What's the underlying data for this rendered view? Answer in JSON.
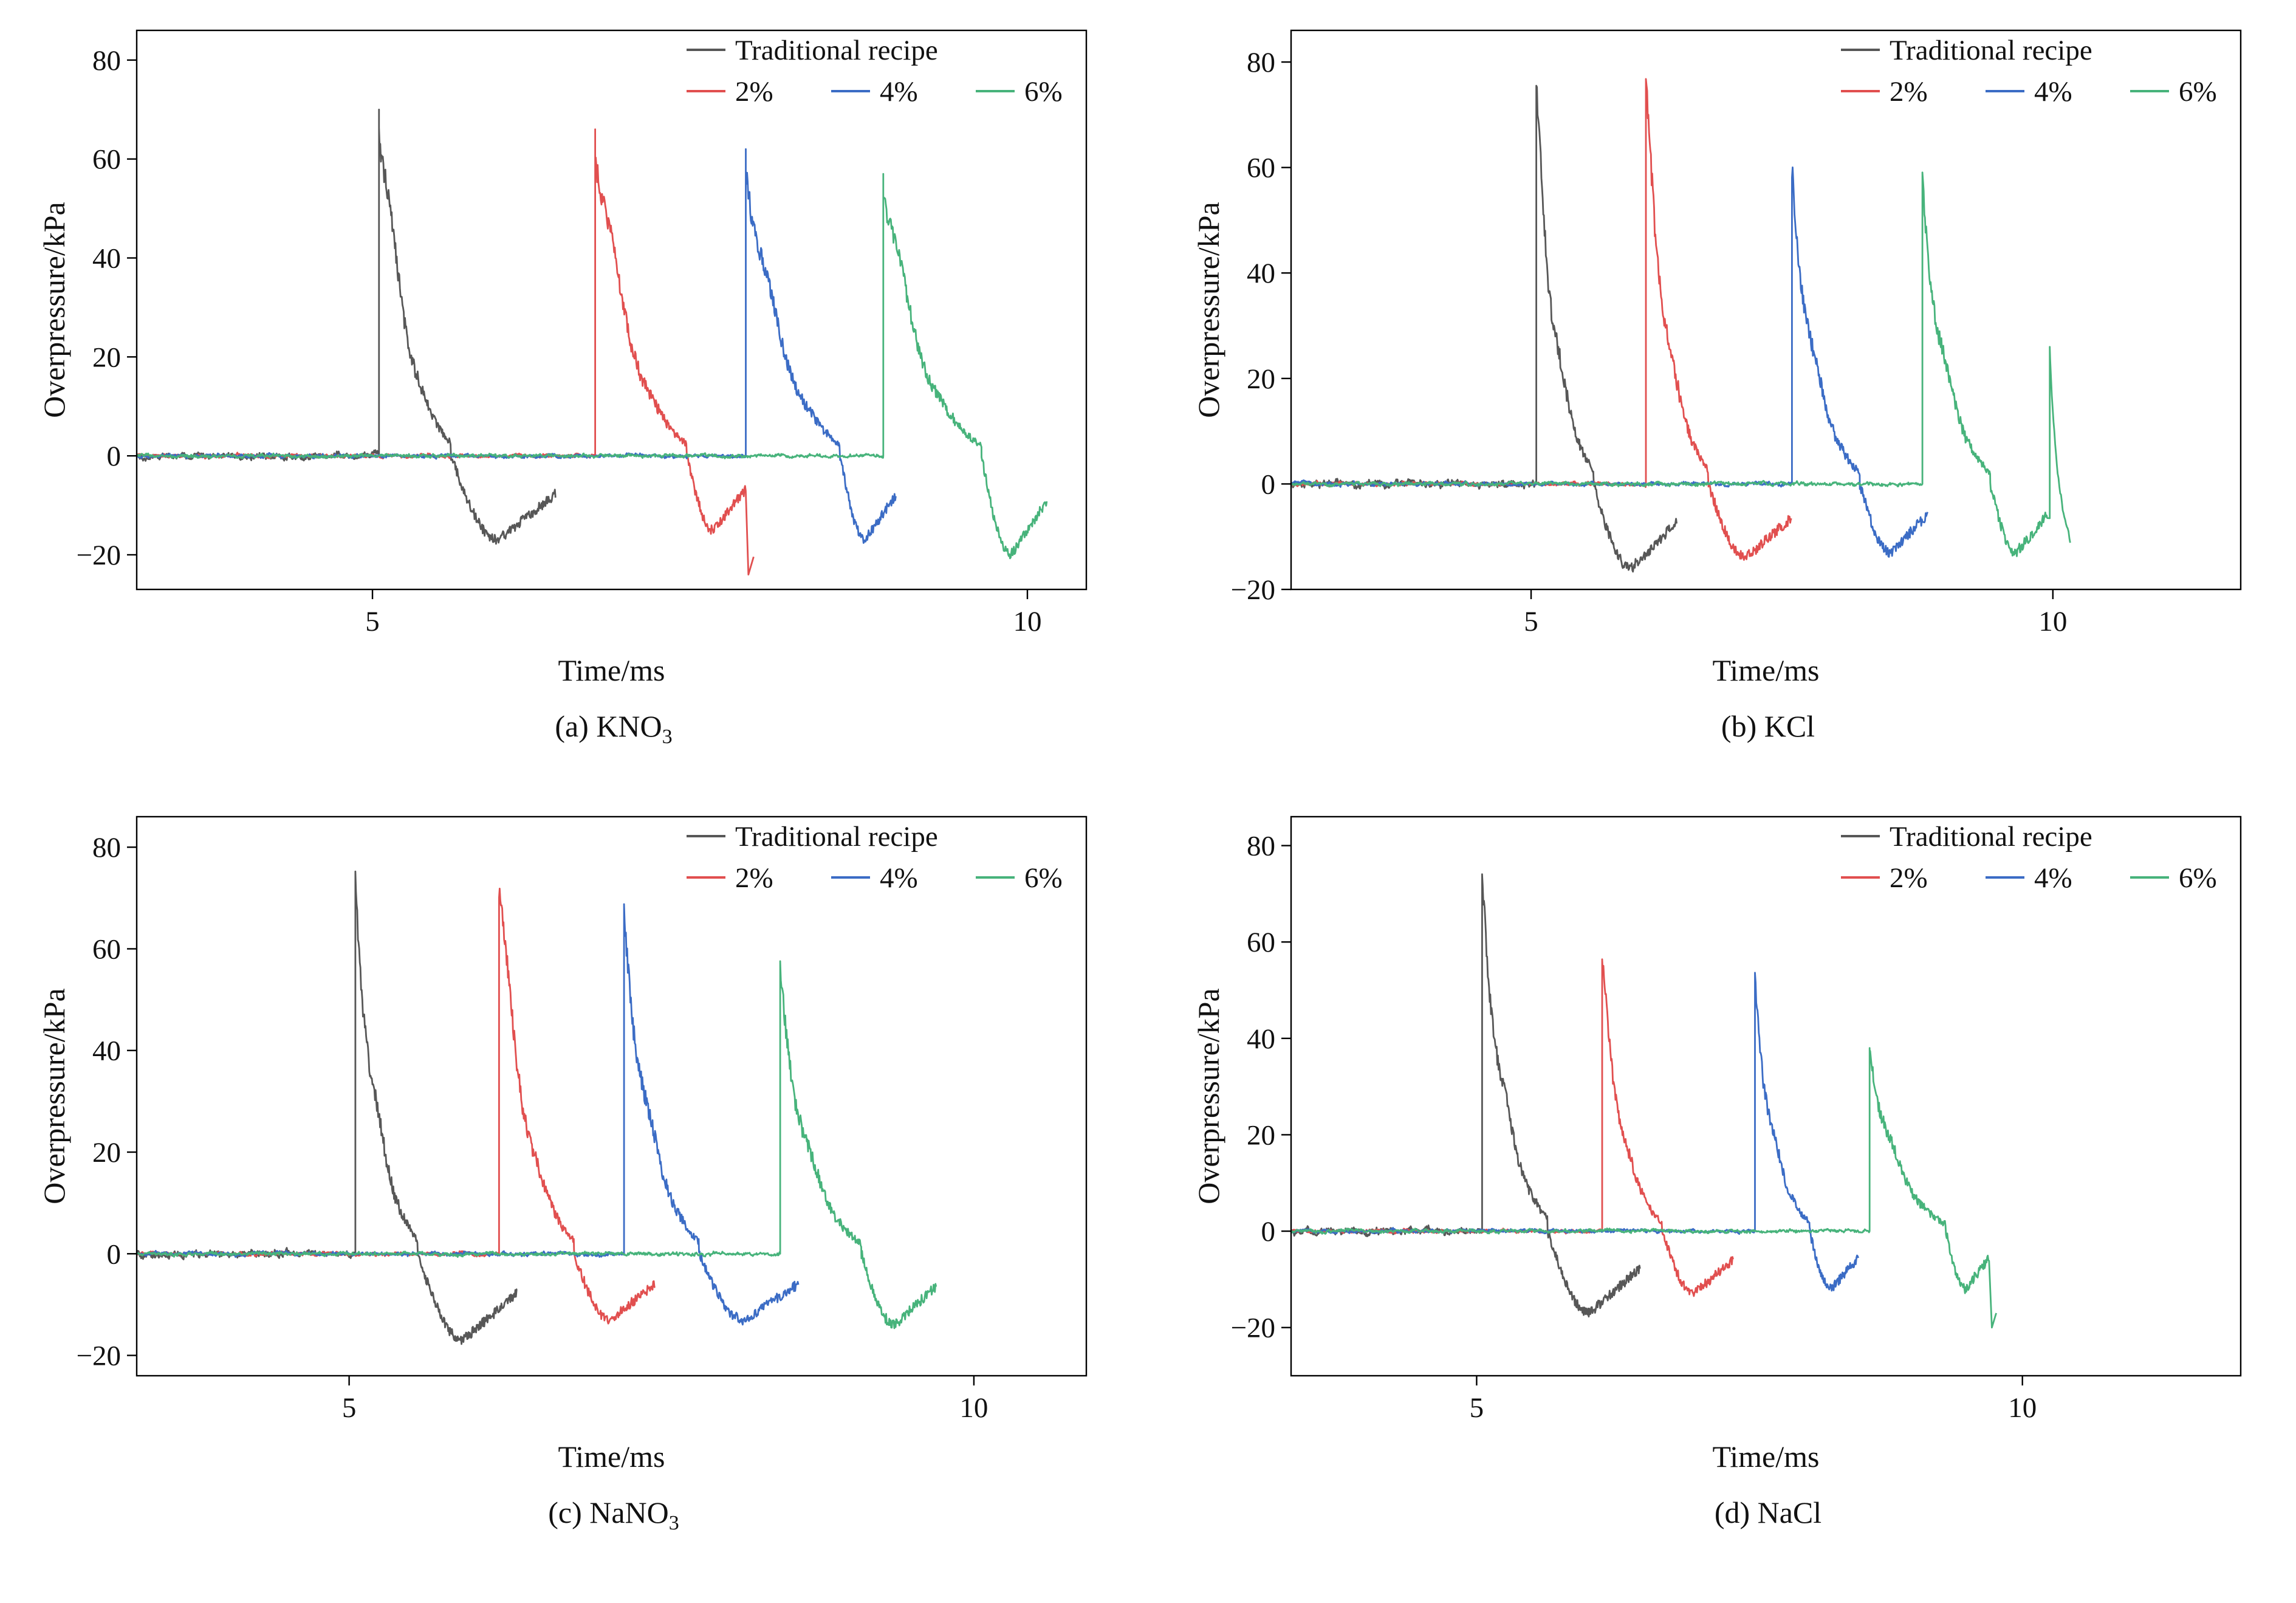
{
  "figure": {
    "background": "#ffffff",
    "axis_color": "#000000",
    "text_color": "#111111"
  },
  "chart_data": [
    {
      "id": "a",
      "type": "line",
      "caption": {
        "text": "(a) KNO",
        "sub": "3"
      },
      "xlabel": "Time/ms",
      "ylabel": "Overpressure/kPa",
      "xlim": [
        3.2,
        10.45
      ],
      "ylim": [
        -27,
        86
      ],
      "xticks": [
        5,
        10
      ],
      "yticks": [
        80,
        60,
        40,
        20,
        0,
        -20
      ],
      "xtick_labels": [
        "5",
        "10"
      ],
      "ytick_labels": [
        "80",
        "60",
        "40",
        "20",
        "0",
        "−20"
      ],
      "grid": false,
      "legend_position": "upper right inside",
      "legend": [
        {
          "label": "Traditional recipe",
          "color": "#575757"
        },
        {
          "label": "2%",
          "color": "#e14f4f"
        },
        {
          "label": "4%",
          "color": "#3b6cc5"
        },
        {
          "label": "6%",
          "color": "#47b37b"
        }
      ],
      "series": [
        {
          "name": "traditional",
          "label": "Traditional recipe",
          "color": "#575757",
          "seed": 101,
          "baseline_noise": 0.8,
          "onset_ms": 5.05,
          "peak_kPa": 70,
          "positive_ms": 0.55,
          "min_kPa": -17,
          "trace_end_ms": 6.4
        },
        {
          "name": "pct2",
          "label": "2%",
          "color": "#e14f4f",
          "seed": 102,
          "baseline_noise": 0.4,
          "onset_ms": 6.7,
          "peak_kPa": 66,
          "positive_ms": 0.7,
          "min_kPa": -15,
          "trace_end_ms": 7.85,
          "end_dip_kPa": -24
        },
        {
          "name": "pct4",
          "label": "4%",
          "color": "#3b6cc5",
          "seed": 103,
          "baseline_noise": 0.4,
          "onset_ms": 7.85,
          "peak_kPa": 62,
          "positive_ms": 0.72,
          "min_kPa": -17,
          "trace_end_ms": 9.0
        },
        {
          "name": "pct6",
          "label": "6%",
          "color": "#47b37b",
          "seed": 104,
          "baseline_noise": 0.4,
          "onset_ms": 8.9,
          "peak_kPa": 57,
          "positive_ms": 0.75,
          "min_kPa": -20,
          "trace_end_ms": 10.15
        }
      ]
    },
    {
      "id": "b",
      "type": "line",
      "caption": {
        "text": "(b) KCl",
        "sub": ""
      },
      "xlabel": "Time/ms",
      "ylabel": "Overpressure/kPa",
      "xlim": [
        2.7,
        11.8
      ],
      "ylim": [
        -20,
        86
      ],
      "xticks": [
        5,
        10
      ],
      "yticks": [
        80,
        60,
        40,
        20,
        0,
        -20
      ],
      "xtick_labels": [
        "5",
        "10"
      ],
      "ytick_labels": [
        "80",
        "60",
        "40",
        "20",
        "0",
        "−20"
      ],
      "grid": false,
      "legend_position": "upper right inside",
      "legend": [
        {
          "label": "Traditional recipe",
          "color": "#575757"
        },
        {
          "label": "2%",
          "color": "#e14f4f"
        },
        {
          "label": "4%",
          "color": "#3b6cc5"
        },
        {
          "label": "6%",
          "color": "#47b37b"
        }
      ],
      "series": [
        {
          "name": "traditional",
          "label": "Traditional recipe",
          "color": "#575757",
          "seed": 201,
          "baseline_noise": 0.8,
          "onset_ms": 5.05,
          "peak_kPa": 70,
          "positive_ms": 0.55,
          "min_kPa": -16,
          "trace_end_ms": 6.4
        },
        {
          "name": "pct2",
          "label": "2%",
          "color": "#e14f4f",
          "seed": 202,
          "baseline_noise": 0.4,
          "onset_ms": 6.1,
          "peak_kPa": 71,
          "positive_ms": 0.6,
          "min_kPa": -14,
          "trace_end_ms": 7.5
        },
        {
          "name": "pct4",
          "label": "4%",
          "color": "#3b6cc5",
          "seed": 203,
          "baseline_noise": 0.4,
          "onset_ms": 7.5,
          "peak_kPa": 57,
          "positive_ms": 0.65,
          "min_kPa": -13,
          "trace_end_ms": 8.8
        },
        {
          "name": "pct6",
          "label": "6%",
          "color": "#47b37b",
          "seed": 204,
          "baseline_noise": 0.4,
          "onset_ms": 8.75,
          "peak_kPa": 55,
          "positive_ms": 0.65,
          "min_kPa": -13,
          "trace_end_ms": 9.95,
          "aftershock": {
            "time_ms": 9.97,
            "peak_kPa": 26,
            "duration_ms": 0.2
          }
        }
      ]
    },
    {
      "id": "c",
      "type": "line",
      "caption": {
        "text": "(c) NaNO",
        "sub": "3"
      },
      "xlabel": "Time/ms",
      "ylabel": "Overpressure/kPa",
      "xlim": [
        3.3,
        10.9
      ],
      "ylim": [
        -24,
        86
      ],
      "xticks": [
        5,
        10
      ],
      "yticks": [
        80,
        60,
        40,
        20,
        0,
        -20
      ],
      "xtick_labels": [
        "5",
        "10"
      ],
      "ytick_labels": [
        "80",
        "60",
        "40",
        "20",
        "0",
        "−20"
      ],
      "grid": false,
      "legend_position": "upper right inside",
      "legend": [
        {
          "label": "Traditional recipe",
          "color": "#575757"
        },
        {
          "label": "2%",
          "color": "#e14f4f"
        },
        {
          "label": "4%",
          "color": "#3b6cc5"
        },
        {
          "label": "6%",
          "color": "#47b37b"
        }
      ],
      "series": [
        {
          "name": "traditional",
          "label": "Traditional recipe",
          "color": "#575757",
          "seed": 301,
          "baseline_noise": 0.8,
          "onset_ms": 5.05,
          "peak_kPa": 70,
          "positive_ms": 0.5,
          "min_kPa": -17,
          "trace_end_ms": 6.35
        },
        {
          "name": "pct2",
          "label": "2%",
          "color": "#e14f4f",
          "seed": 302,
          "baseline_noise": 0.4,
          "onset_ms": 6.2,
          "peak_kPa": 70,
          "positive_ms": 0.6,
          "min_kPa": -13,
          "trace_end_ms": 7.45
        },
        {
          "name": "pct4",
          "label": "4%",
          "color": "#3b6cc5",
          "seed": 303,
          "baseline_noise": 0.4,
          "onset_ms": 7.2,
          "peak_kPa": 65,
          "positive_ms": 0.6,
          "min_kPa": -13,
          "trace_end_ms": 8.6
        },
        {
          "name": "pct6",
          "label": "6%",
          "color": "#47b37b",
          "seed": 304,
          "baseline_noise": 0.4,
          "onset_ms": 8.45,
          "peak_kPa": 52,
          "positive_ms": 0.65,
          "min_kPa": -14,
          "trace_end_ms": 9.7
        }
      ]
    },
    {
      "id": "d",
      "type": "line",
      "caption": {
        "text": "(d) NaCl",
        "sub": ""
      },
      "xlabel": "Time/ms",
      "ylabel": "Overpressure/kPa",
      "xlim": [
        3.3,
        12.0
      ],
      "ylim": [
        -30,
        86
      ],
      "xticks": [
        5,
        10
      ],
      "yticks": [
        80,
        60,
        40,
        20,
        0,
        -20
      ],
      "xtick_labels": [
        "5",
        "10"
      ],
      "ytick_labels": [
        "80",
        "60",
        "40",
        "20",
        "0",
        "−20"
      ],
      "grid": false,
      "legend_position": "upper right inside",
      "legend": [
        {
          "label": "Traditional recipe",
          "color": "#575757"
        },
        {
          "label": "2%",
          "color": "#e14f4f"
        },
        {
          "label": "4%",
          "color": "#3b6cc5"
        },
        {
          "label": "6%",
          "color": "#47b37b"
        }
      ],
      "series": [
        {
          "name": "traditional",
          "label": "Traditional recipe",
          "color": "#575757",
          "seed": 401,
          "baseline_noise": 0.8,
          "onset_ms": 5.05,
          "peak_kPa": 70,
          "positive_ms": 0.6,
          "min_kPa": -17,
          "trace_end_ms": 6.5
        },
        {
          "name": "pct2",
          "label": "2%",
          "color": "#e14f4f",
          "seed": 402,
          "baseline_noise": 0.4,
          "onset_ms": 6.15,
          "peak_kPa": 52,
          "positive_ms": 0.55,
          "min_kPa": -13,
          "trace_end_ms": 7.35
        },
        {
          "name": "pct4",
          "label": "4%",
          "color": "#3b6cc5",
          "seed": 403,
          "baseline_noise": 0.4,
          "onset_ms": 7.55,
          "peak_kPa": 49,
          "positive_ms": 0.5,
          "min_kPa": -12,
          "trace_end_ms": 8.5
        },
        {
          "name": "pct6",
          "label": "6%",
          "color": "#47b37b",
          "seed": 404,
          "baseline_noise": 0.4,
          "onset_ms": 8.6,
          "peak_kPa": 38,
          "positive_ms": 0.7,
          "min_kPa": -12,
          "trace_end_ms": 9.7,
          "end_dip_kPa": -20
        }
      ]
    }
  ]
}
